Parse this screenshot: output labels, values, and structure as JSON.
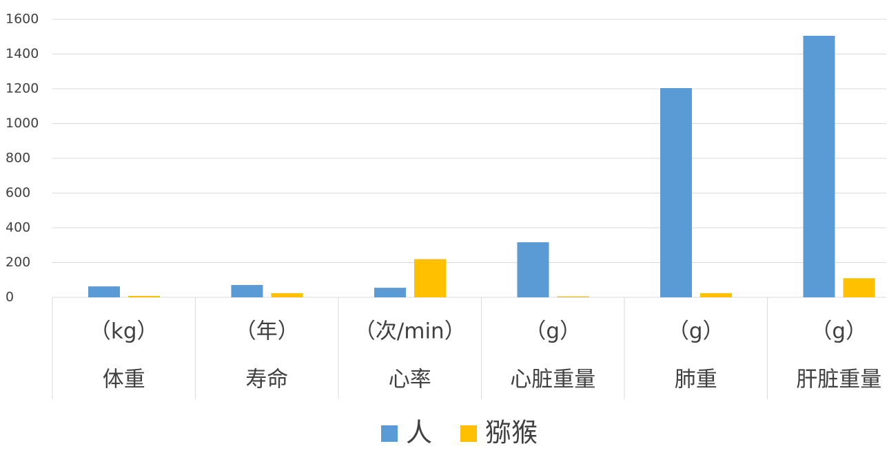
{
  "chart_data": {
    "type": "bar",
    "categories": [
      "体重",
      "寿命",
      "心率",
      "心脏重量",
      "肺重",
      "肝脏重量"
    ],
    "category_units": [
      "（kg）",
      "（年）",
      "（次/min）",
      "（g）",
      "（g）",
      "（g）"
    ],
    "series": [
      {
        "name": "人",
        "color": "#5b9bd5",
        "values": [
          63,
          71,
          55,
          317,
          1204,
          1505
        ]
      },
      {
        "name": "猕猴",
        "color": "#ffc000",
        "values": [
          8,
          24,
          220,
          6,
          24,
          110
        ]
      }
    ],
    "ylim": [
      0,
      1600
    ],
    "yticks": [
      0,
      200,
      400,
      600,
      800,
      1000,
      1200,
      1400,
      1600
    ],
    "grid": true,
    "legend": "bottom"
  }
}
